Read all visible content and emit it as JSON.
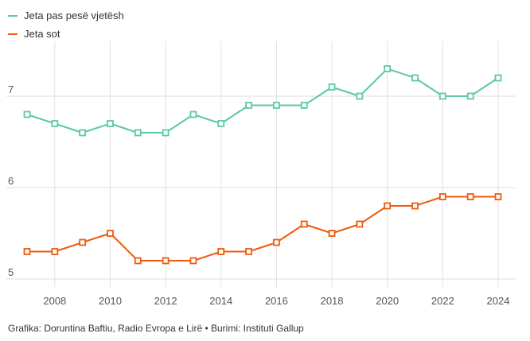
{
  "chart_data": {
    "type": "line",
    "x": [
      2007,
      2008,
      2009,
      2010,
      2011,
      2012,
      2013,
      2014,
      2015,
      2016,
      2017,
      2018,
      2019,
      2020,
      2021,
      2022,
      2023,
      2024
    ],
    "series": [
      {
        "name": "Jeta pas pesë vjetësh",
        "color": "#5cc9a2",
        "values": [
          6.8,
          6.7,
          6.6,
          6.7,
          6.6,
          6.6,
          6.8,
          6.7,
          6.9,
          6.9,
          6.9,
          7.1,
          7.0,
          7.3,
          7.2,
          7.0,
          7.0,
          7.2
        ]
      },
      {
        "name": "Jeta sot",
        "color": "#ef5a0f",
        "values": [
          5.3,
          5.3,
          5.4,
          5.5,
          5.2,
          5.2,
          5.2,
          5.3,
          5.3,
          5.4,
          5.6,
          5.5,
          5.6,
          5.8,
          5.8,
          5.9,
          5.9,
          5.9
        ]
      }
    ],
    "y_ticks": [
      5,
      6,
      7
    ],
    "x_ticks": [
      2008,
      2010,
      2012,
      2014,
      2016,
      2018,
      2020,
      2022,
      2024
    ],
    "ylim": [
      5,
      7.6
    ],
    "grid": true,
    "legend_position": "top-left",
    "source": "Grafika: Doruntina Baftiu, Radio Evropa e Lirë • Burimi: Instituti Gallup"
  }
}
